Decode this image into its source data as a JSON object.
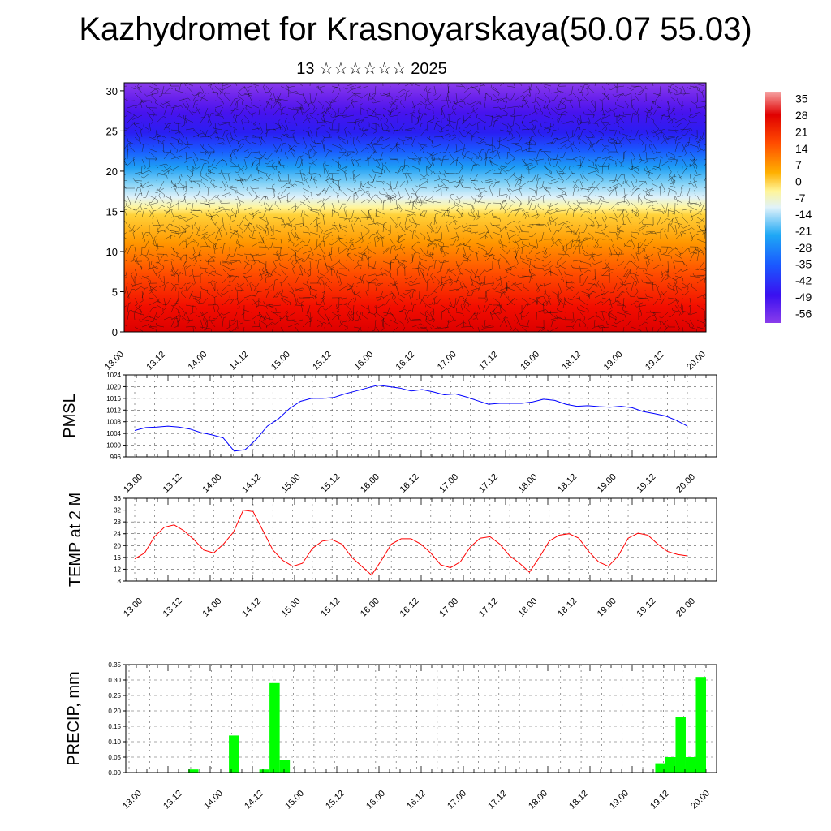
{
  "title": "Kazhydromet for Krasnoyarskaya(50.07 55.03)",
  "subtitle": "13 ☆☆☆☆☆☆ 2025",
  "time_labels": [
    "13.00",
    "13.12",
    "14.00",
    "14.12",
    "15.00",
    "15.12",
    "16.00",
    "16.12",
    "17.00",
    "17.12",
    "18.00",
    "18.12",
    "19.00",
    "19.12",
    "20.00"
  ],
  "chart_data": [
    {
      "type": "heatmap",
      "yticks": [
        0,
        5,
        10,
        15,
        20,
        25,
        30
      ],
      "ylim": [
        0,
        31
      ],
      "colorbar": {
        "labels": [
          "35",
          "28",
          "21",
          "14",
          "7",
          "0",
          "-7",
          "-14",
          "-21",
          "-28",
          "-35",
          "-42",
          "-49",
          "-56"
        ],
        "range": [
          -60,
          38
        ]
      }
    },
    {
      "type": "line",
      "ylabel": "PMSL",
      "ylim": [
        996,
        1024
      ],
      "yticks": [
        996,
        1000,
        1004,
        1008,
        1012,
        1016,
        1020,
        1024
      ],
      "color": "#0000ff",
      "values": [
        1005,
        1006,
        1006.2,
        1006.5,
        1006.2,
        1005.5,
        1004.3,
        1003.5,
        1002.5,
        998,
        998.5,
        1002,
        1006.5,
        1009,
        1012.5,
        1015,
        1016,
        1016,
        1016.3,
        1017.5,
        1018.5,
        1019.5,
        1020.5,
        1020,
        1019.5,
        1018.5,
        1019,
        1018.2,
        1017.2,
        1017.5,
        1016.5,
        1015.2,
        1014,
        1014.3,
        1014.3,
        1014.3,
        1014.8,
        1015.7,
        1015.3,
        1014,
        1013.3,
        1013.5,
        1013.2,
        1013,
        1013.3,
        1012.8,
        1011.5,
        1010.8,
        1010,
        1008.5,
        1006.5
      ]
    },
    {
      "type": "line",
      "ylabel": "TEMP at 2 M",
      "ylim": [
        8,
        36
      ],
      "yticks": [
        8,
        12,
        16,
        20,
        24,
        28,
        32,
        36
      ],
      "color": "#ff0000",
      "values": [
        15.5,
        17.5,
        23,
        26.2,
        27,
        25,
        22,
        18.5,
        17.5,
        20.5,
        24.5,
        32,
        31.5,
        25,
        18.5,
        15,
        13,
        14,
        19,
        21.5,
        22,
        20.5,
        16,
        13,
        10,
        15,
        20.5,
        22.3,
        22.3,
        20.5,
        17.5,
        13.5,
        12.5,
        14.5,
        19.5,
        22.5,
        23,
        20.5,
        16.5,
        14,
        11,
        16,
        21.5,
        23.5,
        24,
        22.5,
        18,
        14.5,
        13,
        16.5,
        22.5,
        24.2,
        23.5,
        20.5,
        18,
        17,
        16.5
      ]
    },
    {
      "type": "bar",
      "ylabel": "PRECIP, mm",
      "ylim": [
        0,
        0.35
      ],
      "ytick_labels": [
        "0.00",
        "0.05",
        "0.10",
        "0.15",
        "0.20",
        "0.25",
        "0.30",
        "0.35"
      ],
      "color": "#00ff00",
      "values": [
        0,
        0,
        0,
        0,
        0,
        0,
        0.01,
        0,
        0,
        0,
        0.12,
        0,
        0,
        0.01,
        0.29,
        0.04,
        0,
        0,
        0,
        0,
        0,
        0,
        0,
        0,
        0,
        0,
        0,
        0,
        0,
        0,
        0,
        0,
        0,
        0,
        0,
        0,
        0,
        0,
        0,
        0,
        0,
        0,
        0,
        0,
        0,
        0,
        0,
        0,
        0,
        0,
        0,
        0,
        0.03,
        0.05,
        0.18,
        0.05,
        0.31
      ]
    }
  ]
}
